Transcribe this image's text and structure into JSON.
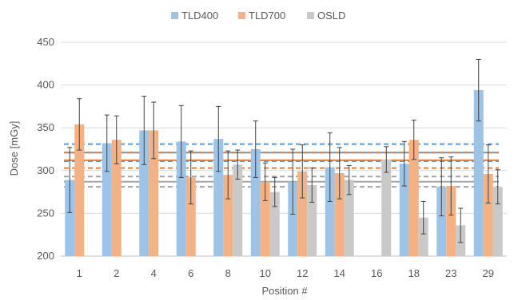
{
  "chart_data": {
    "type": "bar",
    "xlabel": "Position #",
    "ylabel": "Dose [mGy]",
    "ylim": [
      200,
      450
    ],
    "yticks": [
      200,
      250,
      300,
      350,
      400,
      450
    ],
    "grid": "horizontal",
    "legend_position": "top-center",
    "categories": [
      "1",
      "2",
      "4",
      "6",
      "8",
      "10",
      "12",
      "14",
      "16",
      "18",
      "23",
      "29"
    ],
    "series": [
      {
        "name": "TLD400",
        "color": "#9DC3E6",
        "line_color": "#5B9BD5",
        "values": [
          289,
          332,
          347,
          334,
          337,
          325,
          287,
          304,
          null,
          308,
          281,
          394
        ],
        "err": [
          38,
          33,
          40,
          42,
          38,
          33,
          38,
          40,
          null,
          26,
          34,
          36
        ]
      },
      {
        "name": "TLD700",
        "color": "#F4B183",
        "line_color": "#ED7D31",
        "values": [
          354,
          336,
          347,
          292,
          295,
          287,
          299,
          297,
          null,
          336,
          282,
          296
        ],
        "err": [
          30,
          28,
          33,
          31,
          28,
          22,
          31,
          30,
          null,
          23,
          34,
          34
        ]
      },
      {
        "name": "OSLD",
        "color": "#C9C9C9",
        "line_color": "#A5A5A5",
        "values": [
          null,
          null,
          null,
          null,
          307,
          275,
          283,
          289,
          313,
          245,
          236,
          281
        ],
        "err": [
          null,
          null,
          null,
          null,
          17,
          17,
          20,
          17,
          15,
          19,
          20,
          20
        ]
      }
    ],
    "reference_lines": [
      {
        "series": "TLD400",
        "style": "solid",
        "y": 321
      },
      {
        "series": "TLD400",
        "style": "dashed",
        "y": 331
      },
      {
        "series": "TLD400",
        "style": "dashed",
        "y": 311
      },
      {
        "series": "TLD700",
        "style": "solid",
        "y": 312
      },
      {
        "series": "TLD700",
        "style": "dashed",
        "y": 321
      },
      {
        "series": "TLD700",
        "style": "dashed",
        "y": 303
      },
      {
        "series": "OSLD",
        "style": "solid",
        "y": 287
      },
      {
        "series": "OSLD",
        "style": "dashed",
        "y": 293
      },
      {
        "series": "OSLD",
        "style": "dashed",
        "y": 281
      }
    ]
  }
}
